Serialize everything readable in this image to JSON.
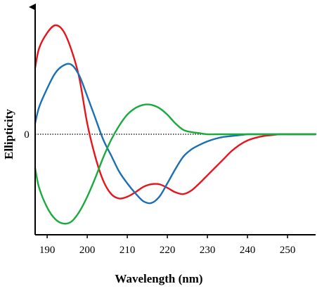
{
  "chart_data": {
    "type": "line",
    "title": "",
    "xlabel": "Wavelength (nm)",
    "ylabel": "Ellipticity",
    "xlim": [
      187,
      257
    ],
    "ylim": [
      -1.0,
      1.0
    ],
    "x_ticks": [
      190,
      200,
      210,
      220,
      230,
      240,
      250
    ],
    "y_ticks": [
      {
        "value": 0,
        "label": "0"
      }
    ],
    "zero_line": "dotted",
    "grid": false,
    "legend": "none",
    "series": [
      {
        "color": "#e8141c",
        "x": [
          187,
          188,
          190,
          192,
          194,
          196,
          198,
          200,
          202,
          204,
          206,
          208,
          210,
          212,
          214,
          216,
          218,
          220,
          222,
          224,
          226,
          228,
          230,
          232,
          234,
          236,
          238,
          240,
          242,
          244,
          246,
          248,
          250,
          252,
          254,
          256,
          257
        ],
        "y": [
          0.61,
          0.79,
          0.93,
          1.0,
          0.95,
          0.78,
          0.52,
          0.1,
          -0.25,
          -0.52,
          -0.67,
          -0.72,
          -0.7,
          -0.65,
          -0.59,
          -0.56,
          -0.56,
          -0.6,
          -0.65,
          -0.67,
          -0.63,
          -0.55,
          -0.46,
          -0.37,
          -0.28,
          -0.19,
          -0.12,
          -0.07,
          -0.04,
          -0.02,
          -0.01,
          0.0,
          0.0,
          0.0,
          0.0,
          0.0,
          0.0
        ]
      },
      {
        "color": "#1b6fb5",
        "x": [
          187,
          188,
          190,
          192,
          194,
          196,
          198,
          200,
          202,
          204,
          206,
          208,
          210,
          212,
          214,
          216,
          218,
          220,
          222,
          224,
          226,
          228,
          230,
          232,
          234,
          236,
          238,
          240,
          242,
          244,
          246,
          248,
          250,
          252,
          254,
          256,
          257
        ],
        "y": [
          0.1,
          0.25,
          0.42,
          0.56,
          0.63,
          0.64,
          0.54,
          0.35,
          0.15,
          -0.06,
          -0.24,
          -0.42,
          -0.55,
          -0.66,
          -0.75,
          -0.77,
          -0.7,
          -0.55,
          -0.39,
          -0.25,
          -0.17,
          -0.12,
          -0.08,
          -0.05,
          -0.03,
          -0.02,
          -0.01,
          0.0,
          0.0,
          0.0,
          0.0,
          0.0,
          0.0,
          0.0,
          0.0,
          0.0,
          0.0
        ]
      },
      {
        "color": "#1aab3c",
        "x": [
          187,
          188,
          190,
          192,
          194,
          196,
          198,
          200,
          202,
          204,
          206,
          208,
          210,
          212,
          214,
          216,
          218,
          220,
          222,
          224,
          226,
          228,
          230,
          232,
          234,
          236,
          238,
          240,
          242,
          244,
          246,
          248,
          250,
          252,
          254,
          256,
          257
        ],
        "y": [
          -0.38,
          -0.6,
          -0.82,
          -0.95,
          -1.0,
          -0.98,
          -0.87,
          -0.7,
          -0.49,
          -0.26,
          -0.06,
          0.08,
          0.18,
          0.24,
          0.27,
          0.27,
          0.24,
          0.18,
          0.1,
          0.04,
          0.02,
          0.01,
          0.0,
          0.0,
          0.0,
          0.0,
          0.0,
          0.0,
          0.0,
          0.0,
          0.0,
          0.0,
          0.0,
          0.0,
          0.0,
          0.0,
          0.0
        ]
      }
    ]
  }
}
